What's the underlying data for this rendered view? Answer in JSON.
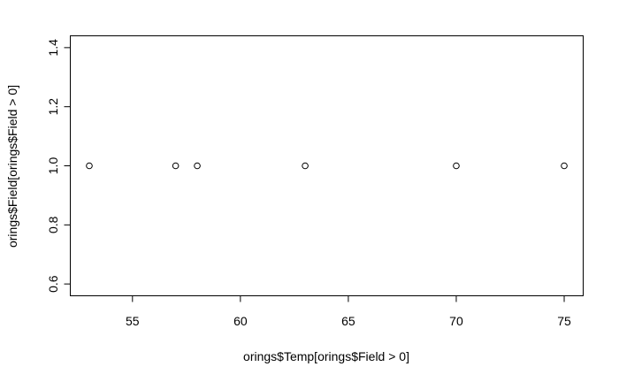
{
  "chart_data": {
    "type": "scatter",
    "xlabel": "orings$Temp[orings$Field > 0]",
    "ylabel": "orings$Field[orings$Field > 0]",
    "x": [
      53,
      57,
      58,
      63,
      70,
      75
    ],
    "y": [
      1,
      1,
      1,
      1,
      1,
      1
    ],
    "xlim": [
      52.12,
      75.88
    ],
    "ylim": [
      0.56,
      1.44
    ],
    "x_ticks": [
      55,
      60,
      65,
      70,
      75
    ],
    "y_ticks": [
      0.6,
      0.8,
      1.0,
      1.2,
      1.4
    ],
    "x_tick_labels": [
      "55",
      "60",
      "65",
      "70",
      "75"
    ],
    "y_tick_labels": [
      "0.6",
      "0.8",
      "1.0",
      "1.2",
      "1.4"
    ],
    "marker": "open-circle",
    "grid": false,
    "colors": {
      "points": "#000000",
      "frame": "#000000",
      "background": "#ffffff"
    }
  }
}
